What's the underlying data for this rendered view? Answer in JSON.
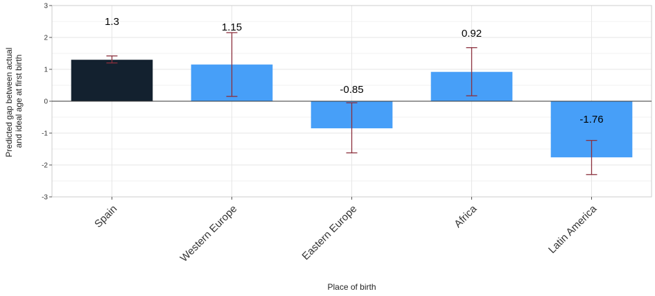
{
  "chart_data": {
    "type": "bar",
    "xlabel": "Place of birth",
    "ylabel_lines": [
      "Predicted gap between actual",
      "and ideal age at first birth"
    ],
    "categories": [
      "Spain",
      "Western Europe",
      "Eastern Europe",
      "Africa",
      "Latin America"
    ],
    "values": [
      1.3,
      1.15,
      -0.85,
      0.92,
      -1.76
    ],
    "data_labels": [
      "1.3",
      "1.15",
      "-0.85",
      "0.92",
      "-1.76"
    ],
    "error_low": [
      1.2,
      0.15,
      -1.62,
      0.17,
      -2.3
    ],
    "error_high": [
      1.42,
      2.15,
      -0.05,
      1.68,
      -1.23
    ],
    "ylim": [
      -3,
      3
    ],
    "yticks": [
      3,
      2,
      1,
      0,
      -1,
      -2,
      -3
    ],
    "ytick_labels": [
      "3",
      "2",
      "1",
      "0",
      "-1",
      "-2",
      "-3"
    ],
    "grid": true,
    "colors": {
      "bars": [
        "#13212f",
        "#479ff8",
        "#479ff8",
        "#479ff8",
        "#479ff8"
      ],
      "error_bars": "#8b2f3c",
      "grid": "#e6e6e6",
      "zero_line": "#333333"
    }
  }
}
